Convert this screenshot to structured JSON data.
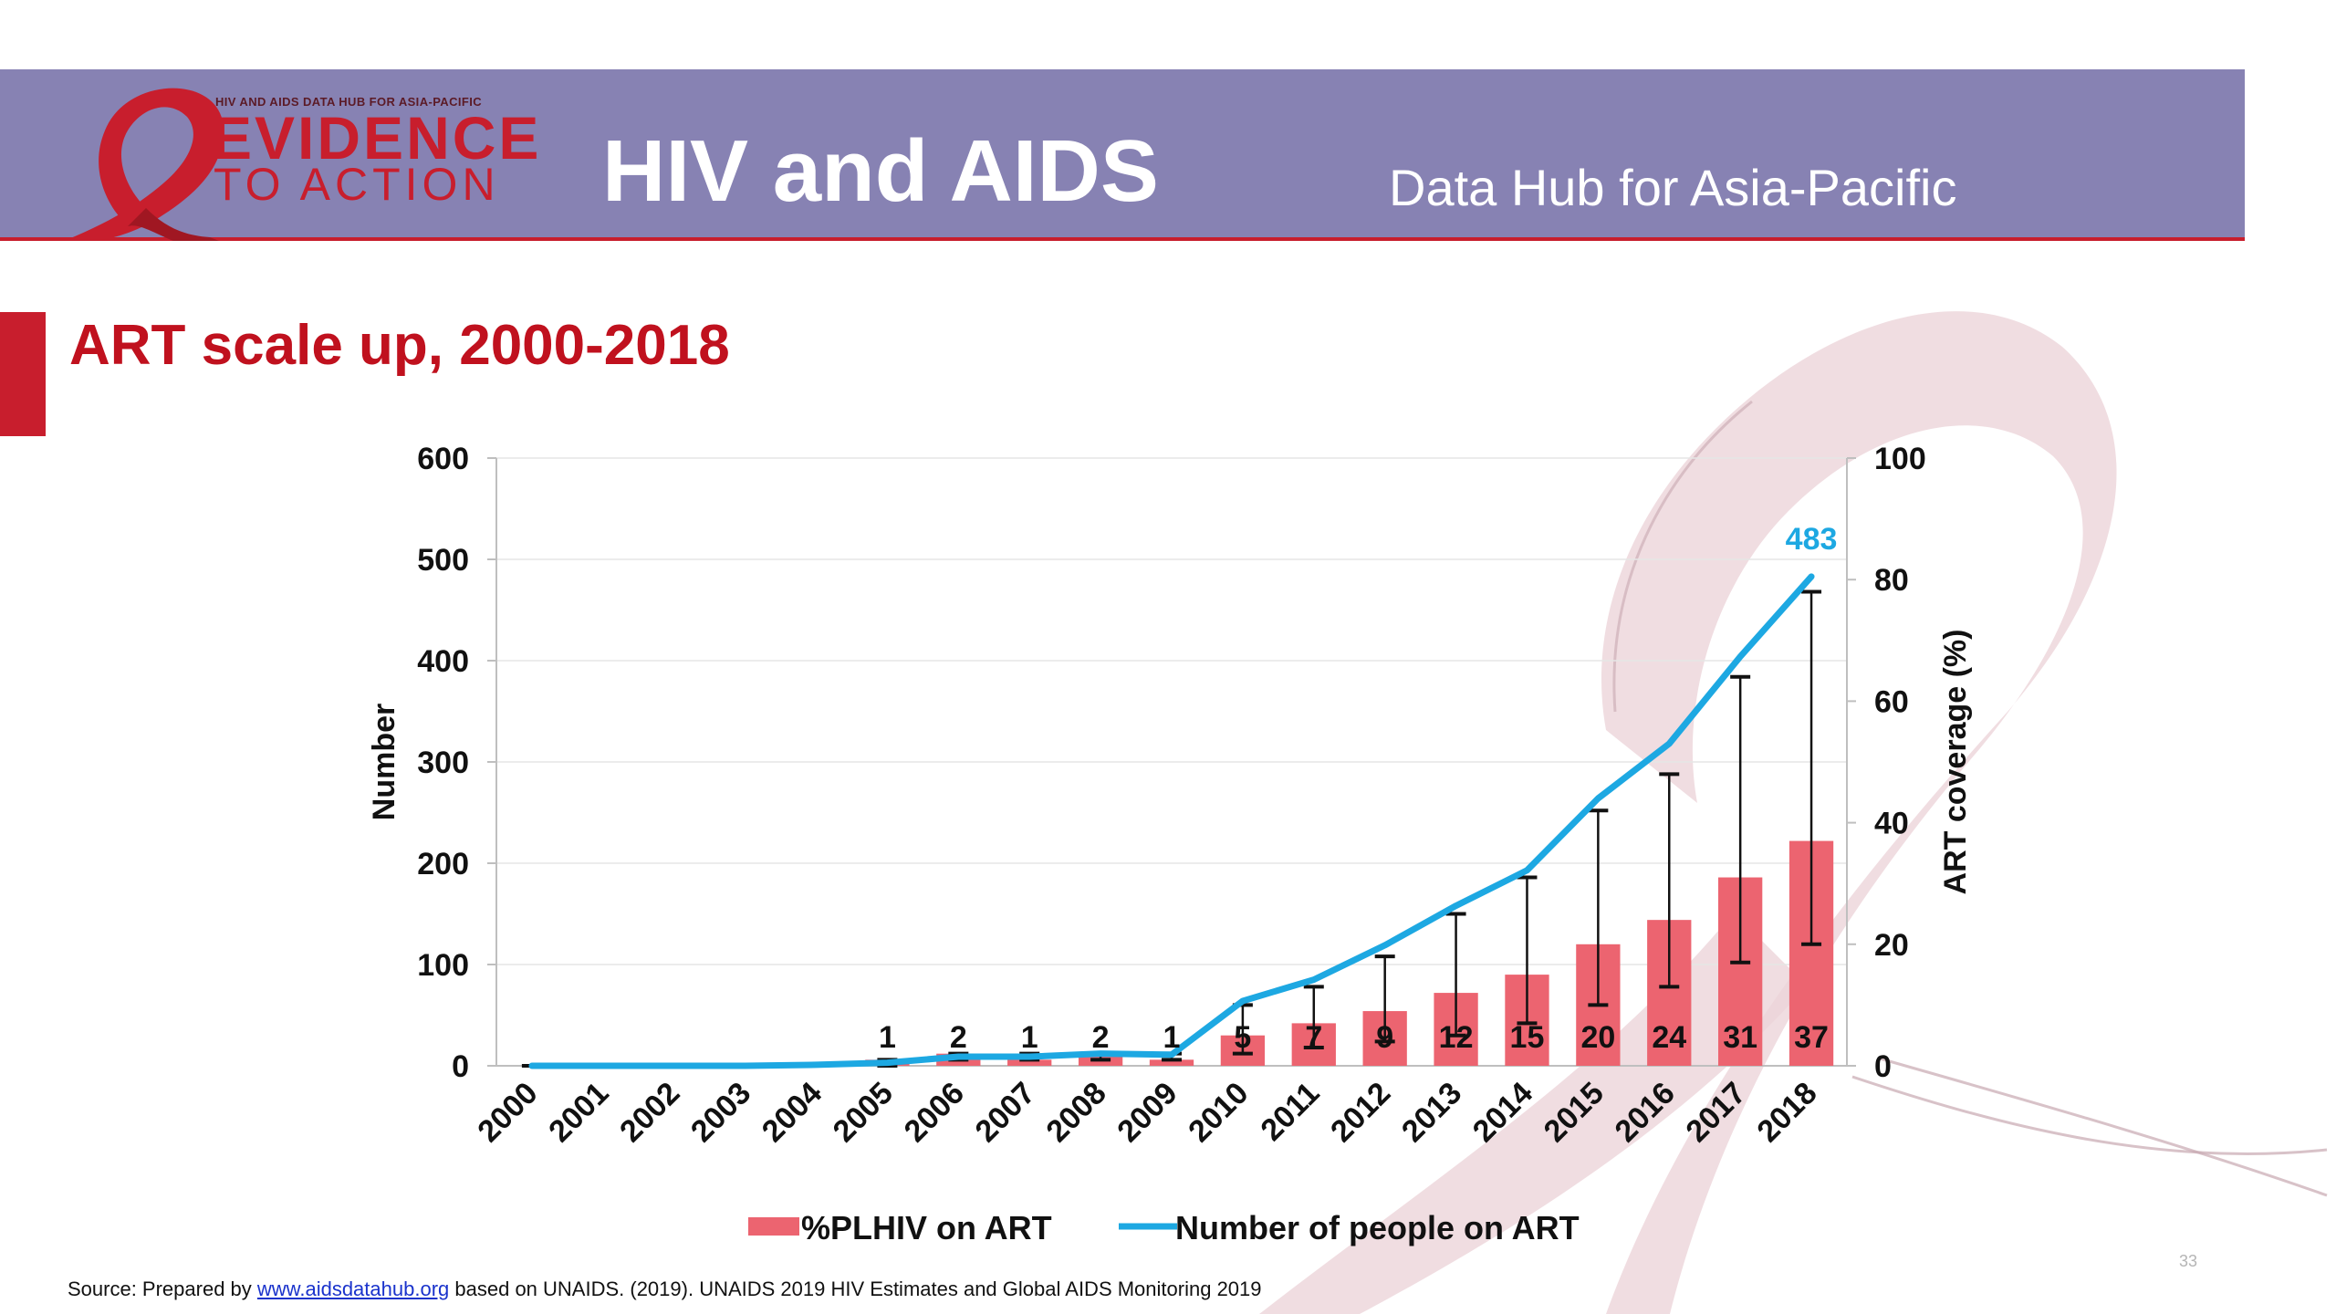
{
  "header": {
    "logo_small": "HIV AND AIDS DATA HUB FOR ASIA-PACIFIC",
    "logo_line1": "EVIDENCE",
    "logo_line2": "TO ACTION",
    "title": "HIV and AIDS",
    "subtitle": "Data Hub for Asia-Pacific"
  },
  "slide": {
    "title": "ART scale up, 2000-2018"
  },
  "footer": {
    "source_prefix": "Source: Prepared by",
    "source_link": "www.aidsdatahub.org",
    "source_suffix": "based on UNAIDS. (2019). UNAIDS 2019 HIV Estimates and Global AIDS Monitoring 2019",
    "page_number": "33"
  },
  "colors": {
    "header_band": "#8782b3",
    "accent_red": "#c81e2d",
    "bar_fill": "#ec6470",
    "line": "#1da8e2",
    "line_label": "#1da8e2"
  },
  "chart_data": {
    "type": "bar",
    "categories": [
      "2000",
      "2001",
      "2002",
      "2003",
      "2004",
      "2005",
      "2006",
      "2007",
      "2008",
      "2009",
      "2010",
      "2011",
      "2012",
      "2013",
      "2014",
      "2015",
      "2016",
      "2017",
      "2018"
    ],
    "ylabel_left": "Number",
    "ylabel_right": "ART coverage (%)",
    "ylim_left": [
      0,
      600
    ],
    "ylim_right": [
      0,
      100
    ],
    "yticks_left": [
      "0",
      "100",
      "200",
      "300",
      "400",
      "500",
      "600"
    ],
    "yticks_right": [
      "0",
      "20",
      "40",
      "60",
      "80",
      "100"
    ],
    "grid": true,
    "legend_position": "bottom",
    "series": [
      {
        "name": "%PLHIV on ART",
        "type": "bar",
        "axis": "right",
        "values": [
          0,
          0,
          0,
          0,
          0,
          1,
          2,
          1,
          2,
          1,
          5,
          7,
          9,
          12,
          15,
          20,
          24,
          31,
          37
        ],
        "error_low": [
          0,
          0,
          0,
          0,
          0,
          0,
          1,
          1,
          1,
          1,
          2,
          3,
          4,
          5,
          7,
          10,
          13,
          17,
          20
        ],
        "error_high": [
          0,
          0,
          0,
          0,
          0,
          1,
          2,
          2,
          2,
          2,
          10,
          13,
          18,
          25,
          31,
          42,
          48,
          64,
          78
        ],
        "labels": [
          "",
          "",
          "",
          "",
          "",
          "1",
          "2",
          "1",
          "2",
          "1",
          "5",
          "7",
          "9",
          "12",
          "15",
          "20",
          "24",
          "31",
          "37"
        ]
      },
      {
        "name": "Number of people on ART",
        "type": "line",
        "axis": "left",
        "values": [
          0,
          0,
          0,
          0,
          1,
          3,
          9,
          9,
          12,
          11,
          64,
          85,
          119,
          158,
          193,
          264,
          318,
          404,
          483
        ],
        "end_label": "483"
      }
    ]
  }
}
